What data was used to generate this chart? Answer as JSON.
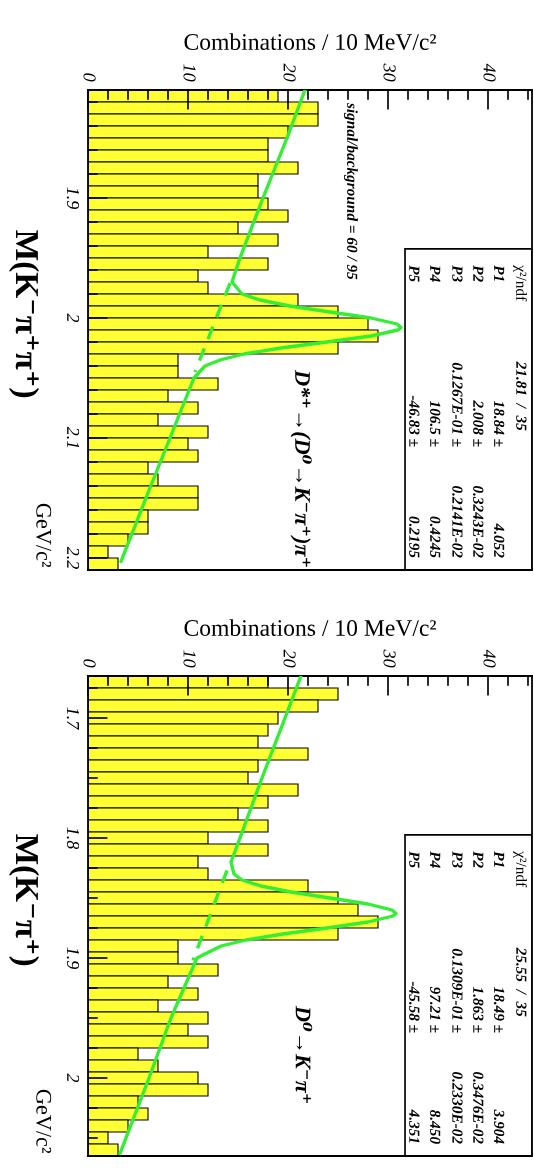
{
  "chart_data": [
    {
      "type": "histogram",
      "orientation": "horizontal",
      "xlabel": "Combinations / 10 MeV/c²",
      "ylabel": "M(K⁻π⁺π⁺)",
      "bins": [
        1.81,
        1.82,
        1.83,
        1.84,
        1.85,
        1.86,
        1.87,
        1.88,
        1.89,
        1.9,
        1.91,
        1.92,
        1.93,
        1.94,
        1.95,
        1.96,
        1.97,
        1.98,
        1.99,
        2.0,
        2.01,
        2.02,
        2.03,
        2.04,
        2.05,
        2.06,
        2.07,
        2.08,
        2.09,
        2.1,
        2.11,
        2.12,
        2.13,
        2.14,
        2.15,
        2.16,
        2.17,
        2.18,
        2.19,
        2.2,
        2.21
      ],
      "values": [
        19,
        23,
        23,
        20,
        18,
        18,
        21,
        17,
        17,
        18,
        20,
        15,
        19,
        12,
        18,
        11,
        12,
        21,
        25,
        28,
        29,
        25,
        9,
        9,
        13,
        8,
        11,
        7,
        12,
        10,
        11,
        6,
        7,
        11,
        11,
        6,
        6,
        4,
        2,
        3
      ],
      "color": "#ffff33",
      "xlim": [
        0,
        44.4
      ],
      "xticks": [
        0,
        {
          "value": 2,
          "label": null
        },
        {
          "value": 4,
          "label": null
        },
        {
          "value": 6,
          "label": null
        },
        {
          "value": 8,
          "label": null
        },
        10,
        {
          "value": 12,
          "label": null
        },
        {
          "value": 14,
          "label": null
        },
        {
          "value": 16,
          "label": null
        },
        {
          "value": 18,
          "label": null
        },
        20,
        {
          "value": 22,
          "label": null
        },
        {
          "value": 24,
          "label": null
        },
        {
          "value": 26,
          "label": null
        },
        {
          "value": 28,
          "label": null
        },
        30,
        {
          "value": 32,
          "label": null
        },
        {
          "value": 34,
          "label": null
        },
        {
          "value": 36,
          "label": null
        },
        {
          "value": 38,
          "label": null
        },
        40,
        {
          "value": 42,
          "label": null
        },
        {
          "value": 44,
          "label": null
        }
      ],
      "ylim": [
        2.21,
        1.81
      ],
      "yticks": [
        {
          "value": 1.82,
          "label": null
        },
        {
          "value": 1.84,
          "label": null
        },
        {
          "value": 1.86,
          "label": null
        },
        {
          "value": 1.88,
          "label": null
        },
        1.9,
        {
          "value": 1.92,
          "label": null
        },
        {
          "value": 1.94,
          "label": null
        },
        {
          "value": 1.96,
          "label": null
        },
        {
          "value": 1.98,
          "label": null
        },
        2,
        {
          "value": 2.02,
          "label": null
        },
        {
          "value": 2.04,
          "label": null
        },
        {
          "value": 2.06,
          "label": null
        },
        {
          "value": 2.08,
          "label": null
        },
        2.1,
        {
          "value": 2.12,
          "label": null
        },
        {
          "value": 2.14,
          "label": null
        },
        {
          "value": 2.16,
          "label": null
        },
        {
          "value": 2.18,
          "label": null
        },
        2.2
      ],
      "series": [
        {
          "type": "line",
          "color": "#33ee33",
          "line_style": "solid",
          "x": [
            1.81,
            1.85,
            1.9,
            1.95,
            1.97,
            1.98,
            1.985,
            1.99,
            1.995,
            2.0,
            2.005,
            2.008,
            2.01,
            2.015,
            2.02,
            2.025,
            2.03,
            2.035,
            2.04,
            2.05,
            2.1,
            2.15,
            2.203
          ],
          "values": [
            21.7,
            19.9,
            17.5,
            15.2,
            14.4,
            15.4,
            17.2,
            20.2,
            24.2,
            28.3,
            30.9,
            31.3,
            31.0,
            28.3,
            23.9,
            19.3,
            15.6,
            13.2,
            11.7,
            10.6,
            8.2,
            5.8,
            3.3
          ]
        },
        {
          "type": "line",
          "color": "#33ee33",
          "line_style": "dashed",
          "x": [
            1.971,
            2.045
          ],
          "values": [
            14.2,
            10.7
          ]
        }
      ],
      "annotations": [
        "D*⁺→(D⁰→K⁻π⁺)π⁺",
        "GeV/c²",
        "χ²/ndf",
        "21.81  /  35",
        "P1",
        "18.84 ±",
        "4.052",
        "P2",
        "2.008 ±",
        "0.3243E-02",
        "P3",
        "0.1267E-01 ±",
        "0.2141E-02",
        "P4",
        "106.5 ±",
        "0.4245",
        "P5",
        "-46.83 ±",
        "0.2195",
        "signal/background = 60 / 95"
      ]
    },
    {
      "type": "histogram",
      "orientation": "horizontal",
      "xlabel": "Combinations / 10 MeV/c²",
      "ylabel": "M(K⁻π⁺)",
      "bins": [
        1.665,
        1.675,
        1.685,
        1.695,
        1.705,
        1.715,
        1.725,
        1.735,
        1.745,
        1.755,
        1.765,
        1.775,
        1.785,
        1.795,
        1.805,
        1.815,
        1.825,
        1.835,
        1.845,
        1.855,
        1.865,
        1.875,
        1.885,
        1.895,
        1.905,
        1.915,
        1.925,
        1.935,
        1.945,
        1.955,
        1.965,
        1.975,
        1.985,
        1.995,
        2.005,
        2.015,
        2.025,
        2.035,
        2.045,
        2.055,
        2.065
      ],
      "values": [
        18,
        25,
        23,
        19,
        18,
        17,
        22,
        17,
        16,
        21,
        18,
        15,
        18,
        12,
        18,
        11,
        12,
        22,
        25,
        27,
        29,
        25,
        9,
        9,
        13,
        8,
        11,
        7,
        12,
        10,
        12,
        5,
        7,
        11,
        12,
        5,
        6,
        4,
        2,
        3
      ],
      "color": "#ffff33",
      "xlim": [
        0,
        44.4
      ],
      "xticks": [
        0,
        {
          "value": 2,
          "label": null
        },
        {
          "value": 4,
          "label": null
        },
        {
          "value": 6,
          "label": null
        },
        {
          "value": 8,
          "label": null
        },
        10,
        {
          "value": 12,
          "label": null
        },
        {
          "value": 14,
          "label": null
        },
        {
          "value": 16,
          "label": null
        },
        {
          "value": 18,
          "label": null
        },
        20,
        {
          "value": 22,
          "label": null
        },
        {
          "value": 24,
          "label": null
        },
        {
          "value": 26,
          "label": null
        },
        {
          "value": 28,
          "label": null
        },
        30,
        {
          "value": 32,
          "label": null
        },
        {
          "value": 34,
          "label": null
        },
        {
          "value": 36,
          "label": null
        },
        {
          "value": 38,
          "label": null
        },
        40,
        {
          "value": 42,
          "label": null
        },
        {
          "value": 44,
          "label": null
        }
      ],
      "ylim": [
        2.065,
        1.665
      ],
      "yticks": [
        {
          "value": 1.675,
          "label": null
        },
        1.7,
        {
          "value": 1.725,
          "label": null
        },
        {
          "value": 1.75,
          "label": null
        },
        {
          "value": 1.775,
          "label": null
        },
        1.8,
        {
          "value": 1.825,
          "label": null
        },
        {
          "value": 1.85,
          "label": null
        },
        {
          "value": 1.875,
          "label": null
        },
        1.9,
        {
          "value": 1.925,
          "label": null
        },
        {
          "value": 1.95,
          "label": null
        },
        {
          "value": 1.975,
          "label": null
        },
        2,
        {
          "value": 2.025,
          "label": null
        },
        {
          "value": 2.05,
          "label": null
        }
      ],
      "series": [
        {
          "type": "line",
          "color": "#33ee33",
          "line_style": "solid",
          "x": [
            1.665,
            1.7,
            1.75,
            1.8,
            1.82,
            1.83,
            1.835,
            1.84,
            1.845,
            1.85,
            1.855,
            1.86,
            1.863,
            1.865,
            1.87,
            1.875,
            1.88,
            1.885,
            1.89,
            1.9,
            1.95,
            2.0,
            2.063
          ],
          "values": [
            21.3,
            19.7,
            17.4,
            15.2,
            14.3,
            14.6,
            15.4,
            17.3,
            20.3,
            24.2,
            28.0,
            30.4,
            30.8,
            30.5,
            28.0,
            23.9,
            19.5,
            15.8,
            13.3,
            10.9,
            8.3,
            6.1,
            3.2
          ]
        },
        {
          "type": "line",
          "color": "#33ee33",
          "line_style": "dashed",
          "x": [
            1.827,
            1.902
          ],
          "values": [
            13.9,
            10.5
          ]
        }
      ],
      "annotations": [
        "D⁰→K⁻π⁺",
        "GeV/c²",
        "χ²/ndf",
        "25.55  /  35",
        "P1",
        "18.49 ±",
        "3.904",
        "P2",
        "1.863 ±",
        "0.3476E-02",
        "P3",
        "0.1309E-01 ±",
        "0.2330E-02",
        "P4",
        "97.21 ±",
        "8.450",
        "P5",
        "-45.58 ±",
        "4.351"
      ]
    }
  ]
}
